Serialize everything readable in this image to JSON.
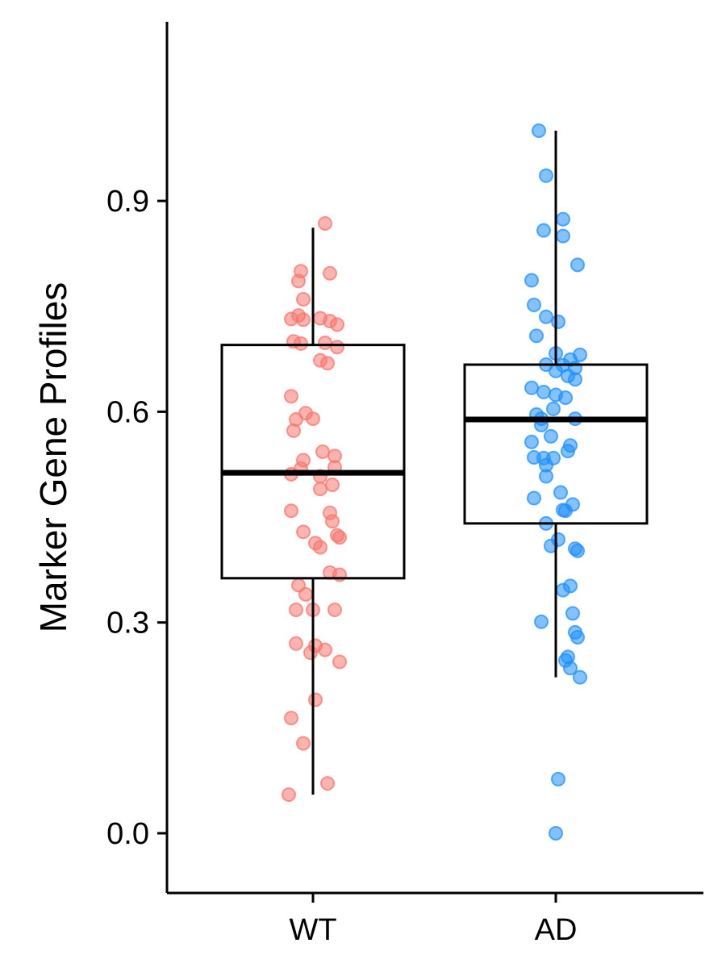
{
  "chart_data": {
    "type": "box",
    "title": "",
    "xlabel": "",
    "ylabel": "Marker Gene Profiles",
    "categories": [
      "WT",
      "AD"
    ],
    "ylim": [
      -0.085,
      1.155
    ],
    "yticks": [
      0.0,
      0.3,
      0.6,
      0.9
    ],
    "ytick_labels": [
      "0.0",
      "0.3",
      "0.6",
      "0.9"
    ],
    "grid": false,
    "legend": "none",
    "colors": {
      "WT": "#F8766D",
      "AD": "#1E90FF",
      "box": "#000000"
    },
    "boxes": [
      {
        "category": "WT",
        "whisker_low": 0.055,
        "q1": 0.363,
        "median": 0.513,
        "q3": 0.695,
        "whisker_high": 0.862
      },
      {
        "category": "AD",
        "whisker_low": 0.222,
        "q1": 0.441,
        "median": 0.589,
        "q3": 0.667,
        "whisker_high": 1.0
      }
    ],
    "points": {
      "WT": [
        {
          "x": 0.05,
          "y": 0.868
        },
        {
          "x": -0.05,
          "y": 0.8
        },
        {
          "x": 0.07,
          "y": 0.797
        },
        {
          "x": -0.06,
          "y": 0.786
        },
        {
          "x": -0.04,
          "y": 0.76
        },
        {
          "x": -0.09,
          "y": 0.732
        },
        {
          "x": -0.06,
          "y": 0.737
        },
        {
          "x": -0.04,
          "y": 0.731
        },
        {
          "x": 0.03,
          "y": 0.733
        },
        {
          "x": 0.07,
          "y": 0.729
        },
        {
          "x": 0.1,
          "y": 0.724
        },
        {
          "x": -0.08,
          "y": 0.7
        },
        {
          "x": -0.05,
          "y": 0.697
        },
        {
          "x": 0.05,
          "y": 0.698
        },
        {
          "x": 0.1,
          "y": 0.692
        },
        {
          "x": 0.03,
          "y": 0.673
        },
        {
          "x": 0.06,
          "y": 0.669
        },
        {
          "x": -0.09,
          "y": 0.622
        },
        {
          "x": -0.03,
          "y": 0.598
        },
        {
          "x": -0.07,
          "y": 0.589
        },
        {
          "x": 0.0,
          "y": 0.59
        },
        {
          "x": -0.08,
          "y": 0.573
        },
        {
          "x": 0.04,
          "y": 0.543
        },
        {
          "x": 0.09,
          "y": 0.537
        },
        {
          "x": -0.04,
          "y": 0.531
        },
        {
          "x": -0.05,
          "y": 0.519
        },
        {
          "x": 0.09,
          "y": 0.521
        },
        {
          "x": -0.09,
          "y": 0.511
        },
        {
          "x": 0.03,
          "y": 0.508
        },
        {
          "x": 0.08,
          "y": 0.496
        },
        {
          "x": 0.03,
          "y": 0.49
        },
        {
          "x": -0.09,
          "y": 0.459
        },
        {
          "x": 0.07,
          "y": 0.456
        },
        {
          "x": 0.08,
          "y": 0.444
        },
        {
          "x": -0.04,
          "y": 0.429
        },
        {
          "x": 0.1,
          "y": 0.424
        },
        {
          "x": 0.11,
          "y": 0.421
        },
        {
          "x": 0.01,
          "y": 0.413
        },
        {
          "x": 0.03,
          "y": 0.407
        },
        {
          "x": 0.07,
          "y": 0.371
        },
        {
          "x": 0.11,
          "y": 0.368
        },
        {
          "x": -0.06,
          "y": 0.353
        },
        {
          "x": -0.03,
          "y": 0.34
        },
        {
          "x": -0.07,
          "y": 0.318
        },
        {
          "x": 0.0,
          "y": 0.318
        },
        {
          "x": 0.09,
          "y": 0.318
        },
        {
          "x": -0.07,
          "y": 0.27
        },
        {
          "x": 0.01,
          "y": 0.267
        },
        {
          "x": 0.05,
          "y": 0.261
        },
        {
          "x": -0.01,
          "y": 0.257
        },
        {
          "x": 0.11,
          "y": 0.244
        },
        {
          "x": 0.01,
          "y": 0.19
        },
        {
          "x": -0.09,
          "y": 0.164
        },
        {
          "x": -0.04,
          "y": 0.128
        },
        {
          "x": 0.06,
          "y": 0.071
        },
        {
          "x": -0.1,
          "y": 0.055
        }
      ],
      "AD": [
        {
          "x": -0.07,
          "y": 1.0
        },
        {
          "x": -0.04,
          "y": 0.936
        },
        {
          "x": 0.03,
          "y": 0.874
        },
        {
          "x": -0.05,
          "y": 0.858
        },
        {
          "x": 0.03,
          "y": 0.85
        },
        {
          "x": 0.09,
          "y": 0.809
        },
        {
          "x": -0.1,
          "y": 0.787
        },
        {
          "x": -0.09,
          "y": 0.752
        },
        {
          "x": -0.04,
          "y": 0.735
        },
        {
          "x": 0.01,
          "y": 0.728
        },
        {
          "x": -0.08,
          "y": 0.708
        },
        {
          "x": 0.0,
          "y": 0.683
        },
        {
          "x": 0.1,
          "y": 0.681
        },
        {
          "x": 0.06,
          "y": 0.674
        },
        {
          "x": -0.04,
          "y": 0.667
        },
        {
          "x": 0.03,
          "y": 0.666
        },
        {
          "x": 0.08,
          "y": 0.662
        },
        {
          "x": 0.0,
          "y": 0.658
        },
        {
          "x": 0.05,
          "y": 0.651
        },
        {
          "x": 0.08,
          "y": 0.646
        },
        {
          "x": -0.1,
          "y": 0.634
        },
        {
          "x": -0.05,
          "y": 0.628
        },
        {
          "x": 0.0,
          "y": 0.624
        },
        {
          "x": 0.04,
          "y": 0.62
        },
        {
          "x": -0.01,
          "y": 0.604
        },
        {
          "x": -0.08,
          "y": 0.596
        },
        {
          "x": -0.06,
          "y": 0.59
        },
        {
          "x": 0.08,
          "y": 0.59
        },
        {
          "x": -0.06,
          "y": 0.581
        },
        {
          "x": -0.02,
          "y": 0.565
        },
        {
          "x": -0.1,
          "y": 0.557
        },
        {
          "x": 0.06,
          "y": 0.552
        },
        {
          "x": 0.05,
          "y": 0.544
        },
        {
          "x": -0.09,
          "y": 0.535
        },
        {
          "x": -0.05,
          "y": 0.534
        },
        {
          "x": -0.01,
          "y": 0.534
        },
        {
          "x": -0.04,
          "y": 0.524
        },
        {
          "x": -0.04,
          "y": 0.508
        },
        {
          "x": 0.02,
          "y": 0.485
        },
        {
          "x": -0.09,
          "y": 0.477
        },
        {
          "x": 0.07,
          "y": 0.468
        },
        {
          "x": 0.03,
          "y": 0.46
        },
        {
          "x": 0.04,
          "y": 0.459
        },
        {
          "x": -0.04,
          "y": 0.441
        },
        {
          "x": 0.01,
          "y": 0.418
        },
        {
          "x": -0.02,
          "y": 0.409
        },
        {
          "x": 0.08,
          "y": 0.405
        },
        {
          "x": 0.09,
          "y": 0.402
        },
        {
          "x": 0.06,
          "y": 0.352
        },
        {
          "x": 0.03,
          "y": 0.346
        },
        {
          "x": -0.06,
          "y": 0.301
        },
        {
          "x": 0.07,
          "y": 0.313
        },
        {
          "x": 0.09,
          "y": 0.279
        },
        {
          "x": 0.08,
          "y": 0.286
        },
        {
          "x": 0.05,
          "y": 0.251
        },
        {
          "x": 0.04,
          "y": 0.246
        },
        {
          "x": 0.06,
          "y": 0.235
        },
        {
          "x": 0.1,
          "y": 0.222
        },
        {
          "x": 0.01,
          "y": 0.077
        },
        {
          "x": 0.0,
          "y": 0.0
        }
      ]
    }
  }
}
